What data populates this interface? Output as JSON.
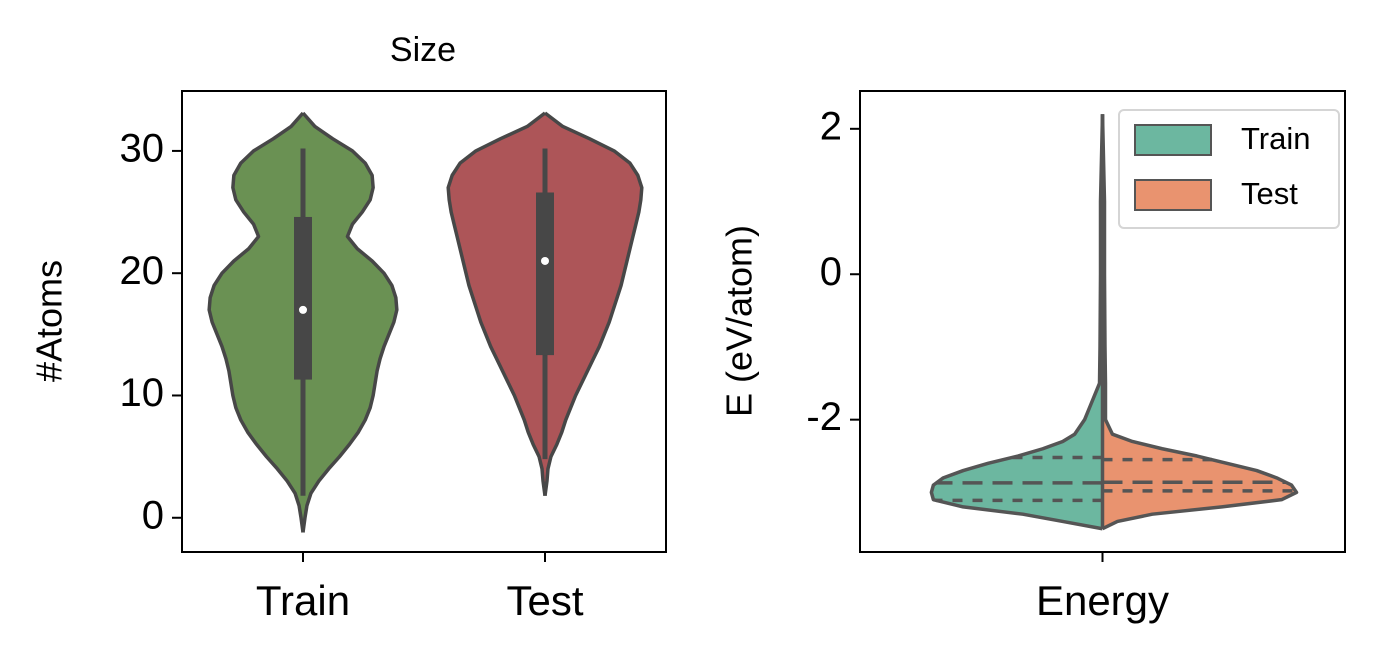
{
  "chart_data": [
    {
      "type": "violin",
      "title": "Size",
      "ylabel": "#Atoms",
      "categories": [
        "Train",
        "Test"
      ],
      "ylim": [
        -2.8,
        34.9
      ],
      "yticks": [
        0,
        10,
        20,
        30
      ],
      "violins": [
        {
          "color": "#6a9153",
          "density_y": [
            33.1,
            32,
            31,
            30,
            29,
            28,
            27,
            26,
            25,
            24,
            23,
            22,
            21,
            20,
            19,
            18,
            17,
            16,
            15,
            14,
            13,
            12,
            11,
            10,
            9,
            8,
            7,
            6,
            5,
            4,
            3,
            2,
            1,
            0,
            -1.2
          ],
          "density": [
            0,
            12,
            30,
            50,
            63,
            70,
            71,
            68,
            60,
            50,
            45,
            55,
            70,
            82,
            90,
            94,
            95,
            92,
            87,
            82,
            78,
            75,
            73,
            71,
            68,
            63,
            56,
            47,
            37,
            26,
            16,
            8,
            4,
            2,
            0
          ],
          "box": [
            11.3,
            17,
            24.6
          ],
          "whiskers": [
            1.8,
            30.2
          ]
        },
        {
          "color": "#ad5558",
          "density_y": [
            33.1,
            32,
            31,
            30,
            29,
            28,
            27,
            26,
            25,
            24,
            23,
            22,
            21,
            20,
            19,
            18,
            17,
            16,
            15,
            14,
            13,
            12,
            11,
            10,
            9,
            8,
            7,
            6,
            5,
            4,
            3,
            1.8
          ],
          "density": [
            0,
            18,
            45,
            70,
            86,
            94,
            98,
            97,
            95,
            92,
            89,
            86,
            83,
            80,
            77,
            73,
            69,
            65,
            60,
            55,
            49,
            43,
            37,
            31,
            26,
            21,
            17,
            12,
            6,
            3,
            2,
            0
          ],
          "box": [
            13.3,
            21,
            26.6
          ],
          "whiskers": [
            4.8,
            30.2
          ]
        }
      ]
    },
    {
      "type": "split_violin",
      "ylabel": "E (eV/atom)",
      "categories": [
        "Energy"
      ],
      "ylim": [
        -3.82,
        2.52
      ],
      "yticks": [
        -2,
        0,
        2
      ],
      "legend": "upper right",
      "density_y": [
        2.2,
        1.0,
        0,
        -1.0,
        -1.5,
        -1.8,
        -2.0,
        -2.2,
        -2.3,
        -2.4,
        -2.5,
        -2.6,
        -2.7,
        -2.8,
        -2.9,
        -3.0,
        -3.1,
        -3.2,
        -3.3,
        -3.4,
        -3.5
      ],
      "series": [
        {
          "name": "Train",
          "color": "#6cb7a0",
          "density": [
            0,
            2,
            2,
            2.5,
            3,
            12,
            18,
            28,
            40,
            60,
            85,
            115,
            140,
            160,
            170,
            172,
            170,
            140,
            80,
            40,
            0
          ],
          "quartiles": [
            -2.52,
            -2.87,
            -3.11
          ]
        },
        {
          "name": "Test",
          "color": "#e9936f",
          "density": [
            0,
            2,
            2,
            2.5,
            3,
            3,
            3,
            10,
            30,
            60,
            95,
            125,
            155,
            175,
            190,
            195,
            180,
            120,
            50,
            15,
            0
          ],
          "quartiles": [
            -2.55,
            -2.86,
            -2.98
          ]
        }
      ]
    }
  ]
}
